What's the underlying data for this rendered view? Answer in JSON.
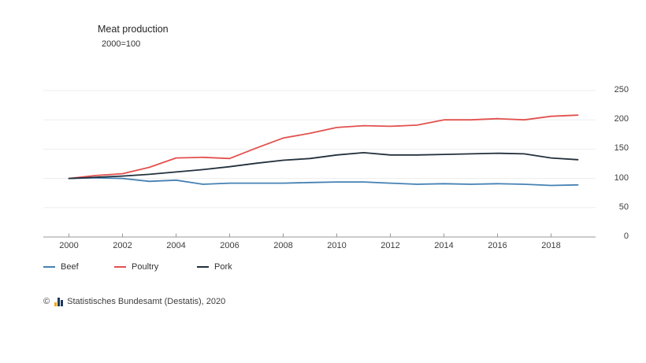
{
  "title": "Meat production",
  "subtitle": "2000=100",
  "menu": {
    "icon": "hamburger-menu-icon"
  },
  "footer": {
    "copyright_symbol": "©",
    "logo": "destatis-bar-chart-icon",
    "source": "Statistisches Bundesamt (Destatis), 2020"
  },
  "chart_data": {
    "type": "line",
    "title": "Meat production",
    "subtitle": "2000=100",
    "x": [
      2000,
      2001,
      2002,
      2003,
      2004,
      2005,
      2006,
      2007,
      2008,
      2009,
      2010,
      2011,
      2012,
      2013,
      2014,
      2015,
      2016,
      2017,
      2018,
      2019
    ],
    "x_ticks": [
      2000,
      2002,
      2004,
      2006,
      2008,
      2010,
      2012,
      2014,
      2016,
      2018
    ],
    "x_tick_labels": [
      "2000",
      "2002",
      "2004",
      "2006",
      "2008",
      "2010",
      "2012",
      "2014",
      "2016",
      "2018"
    ],
    "y_ticks": [
      0,
      50,
      100,
      150,
      200,
      250
    ],
    "ylim": [
      0,
      250
    ],
    "grid": true,
    "legend_position": "bottom-left",
    "series": [
      {
        "name": "Beef",
        "color": "#4581b3",
        "values": [
          100,
          101,
          100,
          95,
          97,
          90,
          92,
          92,
          92,
          93,
          94,
          94,
          92,
          90,
          91,
          90,
          91,
          90,
          88,
          89
        ]
      },
      {
        "name": "Poultry",
        "color": "#e2514e",
        "values": [
          100,
          105,
          108,
          119,
          135,
          136,
          134,
          152,
          169,
          177,
          187,
          190,
          189,
          191,
          200,
          200,
          202,
          200,
          206,
          208
        ]
      },
      {
        "name": "Pork",
        "color": "#22303c",
        "values": [
          100,
          102,
          104,
          107,
          111,
          115,
          120,
          126,
          131,
          134,
          140,
          144,
          140,
          140,
          141,
          142,
          143,
          142,
          135,
          132
        ]
      }
    ],
    "colors": {
      "axis": "#999999",
      "gridline": "#ededed",
      "tick_label": "#3d3d3d"
    }
  }
}
